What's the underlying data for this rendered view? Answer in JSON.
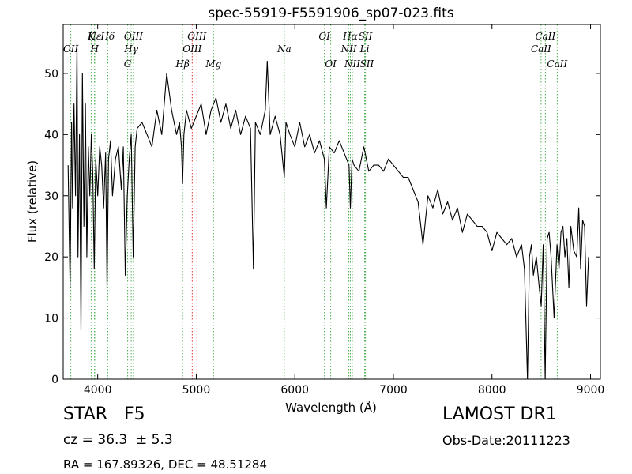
{
  "chart_data": {
    "type": "line",
    "title": "spec-55919-F5591906_sp07-023.fits",
    "xlabel": "Wavelength (Å)",
    "ylabel": "Flux (relative)",
    "xlim": [
      3650,
      9100
    ],
    "ylim": [
      0,
      58
    ],
    "xticks": [
      4000,
      5000,
      6000,
      7000,
      8000,
      9000
    ],
    "yticks": [
      0,
      10,
      20,
      30,
      40,
      50
    ],
    "series": [
      {
        "values_x": [
          3700,
          3720,
          3735,
          3745,
          3760,
          3775,
          3790,
          3800,
          3815,
          3830,
          3845,
          3860,
          3875,
          3890,
          3905,
          3920,
          3935,
          3950,
          3965,
          3980,
          4000,
          4020,
          4040,
          4060,
          4080,
          4095,
          4110,
          4130,
          4150,
          4180,
          4210,
          4240,
          4260,
          4280,
          4300,
          4320,
          4340,
          4360,
          4380,
          4400,
          4450,
          4500,
          4550,
          4600,
          4650,
          4700,
          4750,
          4800,
          4830,
          4850,
          4861,
          4875,
          4900,
          4950,
          5000,
          5050,
          5100,
          5150,
          5200,
          5250,
          5300,
          5350,
          5400,
          5450,
          5500,
          5550,
          5580,
          5600,
          5650,
          5700,
          5720,
          5750,
          5800,
          5850,
          5893,
          5910,
          5950,
          6000,
          6050,
          6100,
          6150,
          6200,
          6250,
          6300,
          6320,
          6350,
          6400,
          6450,
          6500,
          6550,
          6563,
          6580,
          6600,
          6650,
          6700,
          6750,
          6800,
          6850,
          6900,
          6950,
          7000,
          7050,
          7100,
          7150,
          7200,
          7250,
          7300,
          7350,
          7400,
          7450,
          7500,
          7550,
          7600,
          7650,
          7700,
          7750,
          7800,
          7850,
          7900,
          7950,
          8000,
          8050,
          8100,
          8150,
          8200,
          8250,
          8300,
          8330,
          8360,
          8380,
          8400,
          8420,
          8450,
          8480,
          8500,
          8520,
          8540,
          8560,
          8580,
          8600,
          8630,
          8660,
          8680,
          8700,
          8720,
          8740,
          8760,
          8780,
          8800,
          8830,
          8860,
          8880,
          8900,
          8920,
          8940,
          8960,
          8980
        ],
        "values_y": [
          35,
          15,
          42,
          28,
          45,
          30,
          55,
          20,
          40,
          8,
          50,
          25,
          45,
          20,
          38,
          30,
          40,
          34,
          18,
          36,
          30,
          38,
          35,
          28,
          37,
          15,
          36,
          39,
          30,
          36,
          38,
          31,
          38,
          17,
          30,
          36,
          40,
          20,
          38,
          41,
          42,
          40,
          38,
          44,
          40,
          50,
          44,
          40,
          42,
          38,
          32,
          40,
          44,
          41,
          43,
          45,
          40,
          44,
          46,
          42,
          45,
          41,
          44,
          40,
          43,
          41,
          18,
          42,
          40,
          44,
          52,
          40,
          43,
          40,
          33,
          42,
          40,
          38,
          42,
          38,
          40,
          37,
          39,
          36,
          28,
          38,
          37,
          39,
          37,
          35,
          28,
          36,
          35,
          34,
          38,
          34,
          35,
          35,
          34,
          36,
          35,
          34,
          33,
          33,
          31,
          29,
          22,
          30,
          28,
          31,
          27,
          29,
          26,
          28,
          24,
          27,
          26,
          25,
          25,
          24,
          21,
          24,
          23,
          22,
          23,
          20,
          22,
          18,
          0,
          20,
          22,
          17,
          20,
          15,
          12,
          22,
          0,
          23,
          24,
          20,
          10,
          22,
          18,
          24,
          25,
          20,
          23,
          15,
          25,
          21,
          20,
          28,
          18,
          26,
          25,
          12,
          20
        ]
      }
    ],
    "lines": [
      {
        "label": "Hε",
        "x": 3970,
        "row": "top1",
        "color": "#4caf50"
      },
      {
        "label": "K",
        "x": 3934,
        "row": "top1",
        "color": "#4caf50"
      },
      {
        "label": "H",
        "x": 3968,
        "row": "top2",
        "color": "#4caf50"
      },
      {
        "label": "Hδ",
        "x": 4102,
        "row": "top1",
        "color": "#4caf50"
      },
      {
        "label": "OIII",
        "x": 4363,
        "row": "top1",
        "color": "#4caf50"
      },
      {
        "label": "Hγ",
        "x": 4340,
        "row": "top2",
        "color": "#4caf50"
      },
      {
        "label": "G",
        "x": 4304,
        "row": "top3",
        "color": "#4caf50"
      },
      {
        "label": "OII",
        "x": 3727,
        "row": "top2",
        "color": "#4caf50"
      },
      {
        "label": "OIII",
        "x": 5007,
        "row": "top1",
        "color": "#e53935"
      },
      {
        "label": "OIII",
        "x": 4959,
        "row": "top2",
        "color": "#e53935"
      },
      {
        "label": "Hβ",
        "x": 4861,
        "row": "top3",
        "color": "#4caf50"
      },
      {
        "label": "Mg",
        "x": 5175,
        "row": "top3",
        "color": "#4caf50"
      },
      {
        "label": "Na",
        "x": 5893,
        "row": "top2",
        "color": "#4caf50"
      },
      {
        "label": "OI",
        "x": 6300,
        "row": "top1",
        "color": "#4caf50"
      },
      {
        "label": "OI",
        "x": 6364,
        "row": "top3",
        "color": "#4caf50"
      },
      {
        "label": "Hα",
        "x": 6563,
        "row": "top1",
        "color": "#4caf50"
      },
      {
        "label": "NII",
        "x": 6548,
        "row": "top2",
        "color": "#4caf50"
      },
      {
        "label": "NII",
        "x": 6583,
        "row": "top3",
        "color": "#4caf50"
      },
      {
        "label": "SII",
        "x": 6716,
        "row": "top1",
        "color": "#4caf50"
      },
      {
        "label": "Li",
        "x": 6708,
        "row": "top2",
        "color": "#4caf50"
      },
      {
        "label": "SII",
        "x": 6731,
        "row": "top3",
        "color": "#4caf50"
      },
      {
        "label": "CaII",
        "x": 8542,
        "row": "top1",
        "color": "#4caf50"
      },
      {
        "label": "CaII",
        "x": 8498,
        "row": "top2",
        "color": "#4caf50"
      },
      {
        "label": "CaII",
        "x": 8662,
        "row": "top3",
        "color": "#4caf50"
      }
    ],
    "grid": false
  },
  "info": {
    "class_label": "STAR   F5",
    "cz_label": "cz = 36.3  ± 5.3",
    "radec_label": "RA = 167.89326, DEC = 48.51284",
    "survey_label": "LAMOST DR1",
    "obsdate_label": "Obs-Date:20111223"
  }
}
